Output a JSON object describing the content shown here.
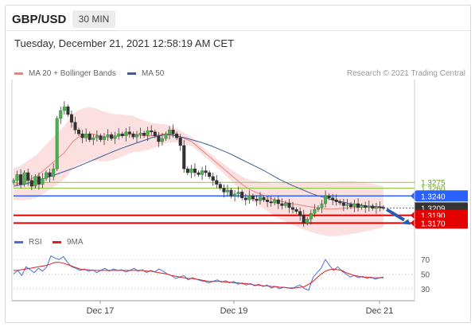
{
  "header": {
    "symbol": "GBP/USD",
    "timeframe": "30 MIN",
    "datetime": "Tuesday, December 21, 2021 12:58:19 AM CET"
  },
  "legend": {
    "ma20_label": "MA 20 + Bollinger Bands",
    "ma20_color": "#f08080",
    "ma50_label": "MA 50",
    "ma50_color": "#3d5a99",
    "rsi_label": "RSI",
    "rsi_color": "#4a6ed6",
    "ma9_label": "9MA",
    "ma9_color": "#e02020"
  },
  "credit": "Research © 2021 Trading Central",
  "chart_data": [
    {
      "type": "candlestick",
      "title": "",
      "x_ticks": [
        "Dec 17",
        "Dec 19",
        "Dec 21"
      ],
      "ylim": [
        1.314,
        1.354
      ],
      "close_series": [
        1.328,
        1.3295,
        1.327,
        1.33,
        1.328,
        1.3265,
        1.329,
        1.327,
        1.3285,
        1.33,
        1.329,
        1.331,
        1.344,
        1.346,
        1.347,
        1.345,
        1.343,
        1.341,
        1.34,
        1.339,
        1.34,
        1.3385,
        1.339,
        1.3395,
        1.3385,
        1.3392,
        1.3398,
        1.3388,
        1.3395,
        1.34,
        1.3395,
        1.3405,
        1.34,
        1.3392,
        1.3398,
        1.3402,
        1.3396,
        1.3408,
        1.3405,
        1.3395,
        1.338,
        1.3388,
        1.34,
        1.341,
        1.34,
        1.339,
        1.337,
        1.331,
        1.33,
        1.331,
        1.33,
        1.3295,
        1.3305,
        1.33,
        1.329,
        1.328,
        1.327,
        1.326,
        1.325,
        1.3255,
        1.324,
        1.3245,
        1.325,
        1.3235,
        1.323,
        1.324,
        1.3232,
        1.3228,
        1.3236,
        1.323,
        1.3225,
        1.3222,
        1.323,
        1.322,
        1.3215,
        1.3222,
        1.321,
        1.3205,
        1.32,
        1.319,
        1.317,
        1.318,
        1.3195,
        1.3205,
        1.321,
        1.322,
        1.324,
        1.3235,
        1.323,
        1.3225,
        1.3222,
        1.3215,
        1.3218,
        1.3212,
        1.322,
        1.321,
        1.3215,
        1.321,
        1.3214,
        1.3208,
        1.3212,
        1.321,
        1.3209
      ],
      "ma20": [
        1.327,
        1.3272,
        1.3275,
        1.328,
        1.3285,
        1.329,
        1.33,
        1.331,
        1.332,
        1.333,
        1.334,
        1.335,
        1.3365,
        1.338,
        1.339,
        1.3395,
        1.3398,
        1.34,
        1.3398,
        1.3395,
        1.3393,
        1.3392,
        1.3392,
        1.3394,
        1.3396,
        1.3398,
        1.34,
        1.3398,
        1.3396,
        1.3395,
        1.3395,
        1.3396,
        1.3398,
        1.34,
        1.34,
        1.3398,
        1.3395,
        1.339,
        1.3385,
        1.338,
        1.337,
        1.336,
        1.335,
        1.334,
        1.333,
        1.332,
        1.331,
        1.33,
        1.329,
        1.328,
        1.327,
        1.3262,
        1.3255,
        1.325,
        1.3245,
        1.324,
        1.3235,
        1.323,
        1.3228,
        1.3225,
        1.3222,
        1.322,
        1.3218,
        1.3216,
        1.3214,
        1.3212,
        1.321,
        1.3208,
        1.3207,
        1.3206,
        1.3206,
        1.3207,
        1.3208,
        1.3209,
        1.321,
        1.321,
        1.3211,
        1.3211,
        1.3211,
        1.3212,
        1.3212,
        1.3212
      ],
      "ma50": [
        1.3265,
        1.3268,
        1.327,
        1.3274,
        1.3278,
        1.3282,
        1.3287,
        1.3292,
        1.3297,
        1.3302,
        1.3307,
        1.3312,
        1.3318,
        1.3324,
        1.333,
        1.3336,
        1.3342,
        1.3348,
        1.3354,
        1.336,
        1.3365,
        1.337,
        1.3375,
        1.338,
        1.3385,
        1.339,
        1.3394,
        1.3397,
        1.3398,
        1.3396,
        1.3393,
        1.339,
        1.3386,
        1.3382,
        1.3378,
        1.3373,
        1.3368,
        1.3362,
        1.3356,
        1.335,
        1.3343,
        1.3336,
        1.3329,
        1.3322,
        1.3315,
        1.3308,
        1.33,
        1.3292,
        1.3284,
        1.3277,
        1.327,
        1.3264,
        1.3258,
        1.3252,
        1.3246,
        1.3241,
        1.3237,
        1.3233,
        1.3229,
        1.3226,
        1.3223,
        1.322,
        1.3218,
        1.3216,
        1.3214,
        1.3213,
        1.3212,
        1.3211
      ],
      "levels": [
        {
          "label": "1.3275",
          "value": 1.3275,
          "style": "thin",
          "color": "#8dc63f"
        },
        {
          "label": "1.3260",
          "value": 1.326,
          "style": "thin",
          "color": "#8dc63f"
        },
        {
          "label": "1.3240",
          "value": 1.324,
          "style": "box",
          "color": "#2962ff"
        },
        {
          "label": "1.3209",
          "value": 1.3209,
          "style": "current",
          "color": "#333333"
        },
        {
          "label": "1.3190",
          "value": 1.319,
          "style": "box",
          "color": "#e50000"
        },
        {
          "label": "1.3170",
          "value": 1.317,
          "style": "box",
          "color": "#e50000"
        }
      ],
      "forecast": "down"
    },
    {
      "type": "line",
      "title": "",
      "series": [
        {
          "name": "RSI",
          "values": [
            50,
            55,
            48,
            60,
            56,
            52,
            58,
            54,
            60,
            75,
            72,
            70,
            74,
            66,
            60,
            58,
            55,
            57,
            54,
            56,
            52,
            55,
            58,
            54,
            57,
            55,
            56,
            53,
            55,
            58,
            54,
            56,
            52,
            55,
            53,
            57,
            54,
            50,
            48,
            44,
            46,
            48,
            42,
            45,
            43,
            41,
            40,
            38,
            40,
            42,
            39,
            41,
            38,
            40,
            36,
            38,
            35,
            37,
            34,
            36,
            33,
            35,
            31,
            33,
            30,
            32,
            31,
            30,
            33,
            35,
            30,
            28,
            45,
            52,
            58,
            70,
            62,
            55,
            60,
            54,
            50,
            46,
            48,
            45,
            47,
            44,
            46,
            43,
            45,
            46
          ]
        },
        {
          "name": "9MA",
          "values": [
            55,
            55,
            56,
            57,
            58,
            59,
            60,
            61,
            62,
            64,
            66,
            66,
            65,
            63,
            61,
            59,
            57,
            56,
            56,
            55,
            55,
            55,
            55,
            55,
            55,
            55,
            55,
            55,
            55,
            55,
            55,
            55,
            54,
            54,
            53,
            52,
            51,
            50,
            48,
            47,
            46,
            45,
            44,
            44,
            43,
            42,
            41,
            40,
            40,
            40,
            40,
            39,
            39,
            38,
            38,
            37,
            37,
            36,
            35,
            35,
            34,
            34,
            33,
            33,
            32,
            32,
            31,
            31,
            31,
            32,
            33,
            36,
            40,
            45,
            50,
            54,
            56,
            57,
            56,
            55,
            52,
            50,
            48,
            47,
            46,
            46,
            45,
            45,
            45,
            45
          ]
        }
      ],
      "ylim": [
        20,
        80
      ],
      "y_ticks": [
        "70",
        "50",
        "30"
      ]
    }
  ]
}
